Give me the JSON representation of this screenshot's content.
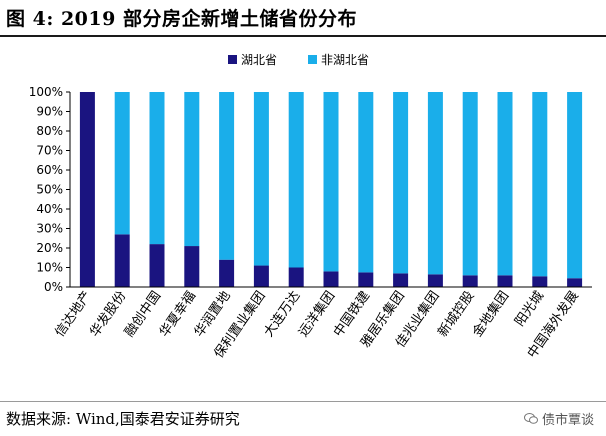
{
  "figure": {
    "title": "图 4:  2019 部分房企新增土储省份分布",
    "source": "数据来源:  Wind,国泰君安证券研究",
    "watermark": "债市覃谈"
  },
  "chart_data": {
    "type": "bar",
    "stacked": true,
    "percent": true,
    "categories": [
      "信达地产",
      "华发股份",
      "融创中国",
      "华夏幸福",
      "华润置地",
      "保利置业集团",
      "大连万达",
      "远洋集团",
      "中国铁建",
      "雅居乐集团",
      "佳兆业集团",
      "新城控股",
      "金地集团",
      "阳光城",
      "中国海外发展"
    ],
    "series": [
      {
        "name": "湖北省",
        "color": "#1a1480",
        "values": [
          100,
          27,
          22,
          21,
          14,
          11,
          10,
          8,
          7.5,
          7,
          6.5,
          6,
          6,
          5.5,
          4.5
        ]
      },
      {
        "name": "非湖北省",
        "color": "#1aaeea",
        "values": [
          0,
          73,
          78,
          79,
          86,
          89,
          90,
          92,
          92.5,
          93,
          93.5,
          94,
          94,
          94.5,
          95.5
        ]
      }
    ],
    "yticks": [
      "0%",
      "10%",
      "20%",
      "30%",
      "40%",
      "50%",
      "60%",
      "70%",
      "80%",
      "90%",
      "100%"
    ],
    "ylim": [
      0,
      100
    ],
    "legend_position": "top-center",
    "grid": false
  }
}
